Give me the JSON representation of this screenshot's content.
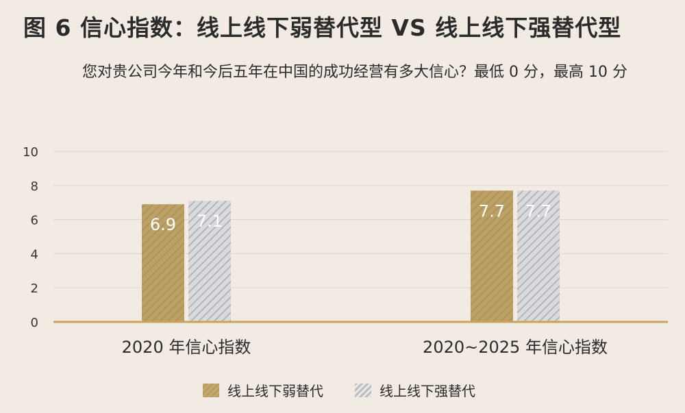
{
  "header": {
    "title": "图 6  信心指数：线上线下弱替代型 VS 线上线下强替代型",
    "subtitle": "您对贵公司今年和今后五年在中国的成功经营有多大信心？最低 0 分，最高 10 分"
  },
  "colors": {
    "weak": "#bba165",
    "strong": "#c6c7cb",
    "axis": "#c9a45a",
    "grid": "#dcd6cd",
    "background": "#f1ebe3"
  },
  "chart_data": {
    "type": "bar",
    "categories": [
      "2020 年信心指数",
      "2020~2025 年信心指数"
    ],
    "series": [
      {
        "name": "线上线下弱替代",
        "values": [
          6.9,
          7.7
        ]
      },
      {
        "name": "线上线下强替代",
        "values": [
          7.1,
          7.7
        ]
      }
    ],
    "data_labels": [
      [
        "6.9",
        "7.7"
      ],
      [
        "7.1",
        "7.7"
      ]
    ],
    "ylim": [
      0,
      10
    ],
    "yticks": [
      "0",
      "2",
      "4",
      "6",
      "8",
      "10"
    ],
    "grid": true,
    "legend_position": "bottom"
  }
}
